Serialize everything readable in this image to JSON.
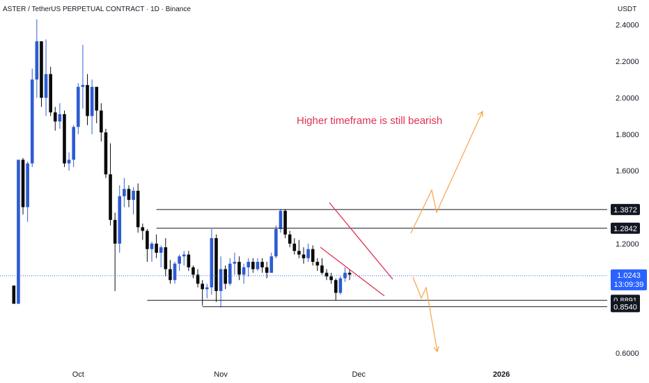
{
  "header": {
    "title": "ASTER / TetherUS PERPETUAL CONTRACT · 1D · Binance",
    "currency": "USDT"
  },
  "chart_data": {
    "type": "candlestick",
    "yticks": [
      "2.4000",
      "2.2000",
      "2.0000",
      "1.8000",
      "1.6000",
      "1.2000",
      "0.6000"
    ],
    "ytick_values": [
      2.4,
      2.2,
      2.0,
      1.8,
      1.6,
      1.2,
      0.6
    ],
    "xticks": [
      {
        "label": "Oct",
        "value": "2025-10-01",
        "bold": false
      },
      {
        "label": "Nov",
        "value": "2025-11-01",
        "bold": false
      },
      {
        "label": "Dec",
        "value": "2025-12-01",
        "bold": false
      },
      {
        "label": "2026",
        "value": "2026-01-01",
        "bold": true
      }
    ],
    "x_range": [
      "2025-09-14",
      "2026-01-24"
    ],
    "y_range": [
      0.55,
      2.46
    ],
    "annotation": "Higher timeframe is still bearish",
    "price_labels": [
      {
        "value": "1.3872",
        "start": "2025-10-18"
      },
      {
        "value": "1.2842",
        "start": "2025-10-18"
      },
      {
        "value": "0.8891",
        "start": "2025-10-16"
      },
      {
        "value": "0.8540",
        "start": "2025-10-28"
      }
    ],
    "last_price": {
      "value": "1.0243",
      "countdown": "13:09:39"
    },
    "candles_ohlc": [
      [
        0.97,
        0.97,
        0.88,
        0.87
      ],
      [
        0.87,
        1.66,
        0.87,
        1.66
      ],
      [
        1.66,
        1.67,
        1.36,
        1.4
      ],
      [
        1.4,
        1.65,
        1.32,
        1.64
      ],
      [
        1.64,
        2.16,
        1.62,
        2.1
      ],
      [
        2.1,
        2.43,
        2.0,
        2.31
      ],
      [
        2.31,
        2.28,
        1.95,
        2.0
      ],
      [
        2.0,
        2.32,
        1.9,
        2.13
      ],
      [
        2.13,
        2.17,
        1.9,
        1.92
      ],
      [
        1.92,
        1.95,
        1.82,
        1.87
      ],
      [
        1.87,
        1.97,
        1.83,
        1.91
      ],
      [
        1.91,
        1.93,
        1.62,
        1.64
      ],
      [
        1.64,
        1.7,
        1.6,
        1.66
      ],
      [
        1.66,
        1.85,
        1.62,
        1.84
      ],
      [
        1.84,
        2.08,
        1.8,
        2.06
      ],
      [
        2.06,
        2.29,
        1.94,
        2.07
      ],
      [
        2.07,
        2.13,
        1.85,
        1.9
      ],
      [
        1.9,
        2.1,
        1.8,
        2.06
      ],
      [
        2.06,
        2.06,
        1.86,
        1.93
      ],
      [
        1.93,
        1.97,
        1.76,
        1.81
      ],
      [
        1.81,
        1.83,
        1.56,
        1.58
      ],
      [
        1.58,
        1.75,
        1.3,
        1.33
      ],
      [
        1.33,
        1.37,
        0.94,
        1.2
      ],
      [
        1.2,
        1.52,
        1.15,
        1.46
      ],
      [
        1.46,
        1.56,
        1.4,
        1.5
      ],
      [
        1.5,
        1.52,
        1.4,
        1.44
      ],
      [
        1.44,
        1.51,
        1.36,
        1.49
      ],
      [
        1.49,
        1.53,
        1.26,
        1.29
      ],
      [
        1.29,
        1.31,
        1.22,
        1.27
      ],
      [
        1.27,
        1.28,
        1.1,
        1.17
      ],
      [
        1.17,
        1.21,
        1.1,
        1.2
      ],
      [
        1.2,
        1.25,
        1.12,
        1.15
      ],
      [
        1.15,
        1.19,
        1.07,
        1.18
      ],
      [
        1.18,
        1.23,
        1.02,
        1.06
      ],
      [
        1.06,
        1.11,
        0.98,
        1.0
      ],
      [
        1.0,
        1.1,
        0.98,
        1.09
      ],
      [
        1.09,
        1.14,
        1.05,
        1.13
      ],
      [
        1.13,
        1.16,
        1.08,
        1.14
      ],
      [
        1.14,
        1.16,
        1.05,
        1.07
      ],
      [
        1.07,
        1.08,
        1.01,
        1.03
      ],
      [
        1.03,
        1.06,
        0.96,
        0.98
      ],
      [
        0.98,
        1.0,
        0.86,
        0.95
      ],
      [
        0.95,
        0.98,
        0.9,
        0.96
      ],
      [
        0.96,
        1.28,
        0.92,
        1.23
      ],
      [
        1.23,
        1.25,
        0.88,
        0.94
      ],
      [
        0.94,
        1.13,
        0.85,
        1.06
      ],
      [
        1.06,
        1.08,
        0.95,
        0.98
      ],
      [
        0.98,
        1.12,
        0.97,
        1.09
      ],
      [
        1.09,
        1.15,
        1.03,
        1.1
      ],
      [
        1.1,
        1.13,
        1.0,
        1.03
      ],
      [
        1.03,
        1.09,
        0.98,
        1.07
      ],
      [
        1.07,
        1.12,
        1.02,
        1.1
      ],
      [
        1.1,
        1.12,
        1.04,
        1.06
      ],
      [
        1.06,
        1.12,
        1.05,
        1.1
      ],
      [
        1.1,
        1.12,
        1.04,
        1.07
      ],
      [
        1.07,
        1.1,
        1.01,
        1.04
      ],
      [
        1.04,
        1.15,
        1.04,
        1.13
      ],
      [
        1.13,
        1.3,
        1.12,
        1.28
      ],
      [
        1.28,
        1.39,
        1.26,
        1.38
      ],
      [
        1.38,
        1.39,
        1.23,
        1.25
      ],
      [
        1.25,
        1.27,
        1.18,
        1.2
      ],
      [
        1.2,
        1.23,
        1.14,
        1.16
      ],
      [
        1.16,
        1.22,
        1.12,
        1.14
      ],
      [
        1.14,
        1.18,
        1.09,
        1.12
      ],
      [
        1.12,
        1.2,
        1.1,
        1.17
      ],
      [
        1.17,
        1.19,
        1.08,
        1.1
      ],
      [
        1.1,
        1.12,
        1.05,
        1.08
      ],
      [
        1.08,
        1.12,
        1.03,
        1.04
      ],
      [
        1.04,
        1.06,
        1.0,
        1.02
      ],
      [
        1.02,
        1.04,
        0.98,
        1.0
      ],
      [
        1.0,
        1.01,
        0.89,
        0.93
      ],
      [
        0.93,
        1.02,
        0.92,
        1.01
      ],
      [
        1.01,
        1.07,
        0.99,
        1.04
      ],
      [
        1.04,
        1.06,
        1.0,
        1.03
      ]
    ]
  }
}
